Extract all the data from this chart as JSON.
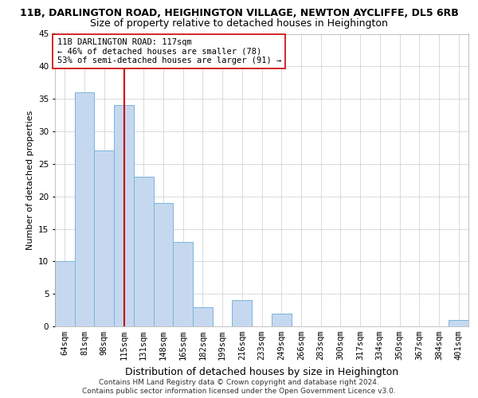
{
  "title_line1": "11B, DARLINGTON ROAD, HEIGHINGTON VILLAGE, NEWTON AYCLIFFE, DL5 6RB",
  "title_line2": "Size of property relative to detached houses in Heighington",
  "xlabel": "Distribution of detached houses by size in Heighington",
  "ylabel": "Number of detached properties",
  "categories": [
    "64sqm",
    "81sqm",
    "98sqm",
    "115sqm",
    "131sqm",
    "148sqm",
    "165sqm",
    "182sqm",
    "199sqm",
    "216sqm",
    "233sqm",
    "249sqm",
    "266sqm",
    "283sqm",
    "300sqm",
    "317sqm",
    "334sqm",
    "350sqm",
    "367sqm",
    "384sqm",
    "401sqm"
  ],
  "values": [
    10,
    36,
    27,
    34,
    23,
    19,
    13,
    3,
    0,
    4,
    0,
    2,
    0,
    0,
    0,
    0,
    0,
    0,
    0,
    0,
    1
  ],
  "bar_color": "#c5d8f0",
  "bar_edge_color": "#7ab4d8",
  "vline_color": "#cc0000",
  "annotation_line1": "11B DARLINGTON ROAD: 117sqm",
  "annotation_line2": "← 46% of detached houses are smaller (78)",
  "annotation_line3": "53% of semi-detached houses are larger (91) →",
  "annotation_box_color": "#ffffff",
  "annotation_box_edge": "#cc0000",
  "ylim": [
    0,
    45
  ],
  "yticks": [
    0,
    5,
    10,
    15,
    20,
    25,
    30,
    35,
    40,
    45
  ],
  "footer_line1": "Contains HM Land Registry data © Crown copyright and database right 2024.",
  "footer_line2": "Contains public sector information licensed under the Open Government Licence v3.0.",
  "bg_color": "#ffffff",
  "grid_color": "#cccccc",
  "title1_fontsize": 9,
  "title2_fontsize": 9,
  "xlabel_fontsize": 9,
  "ylabel_fontsize": 8,
  "tick_fontsize": 7.5,
  "annotation_fontsize": 7.5,
  "footer_fontsize": 6.5
}
